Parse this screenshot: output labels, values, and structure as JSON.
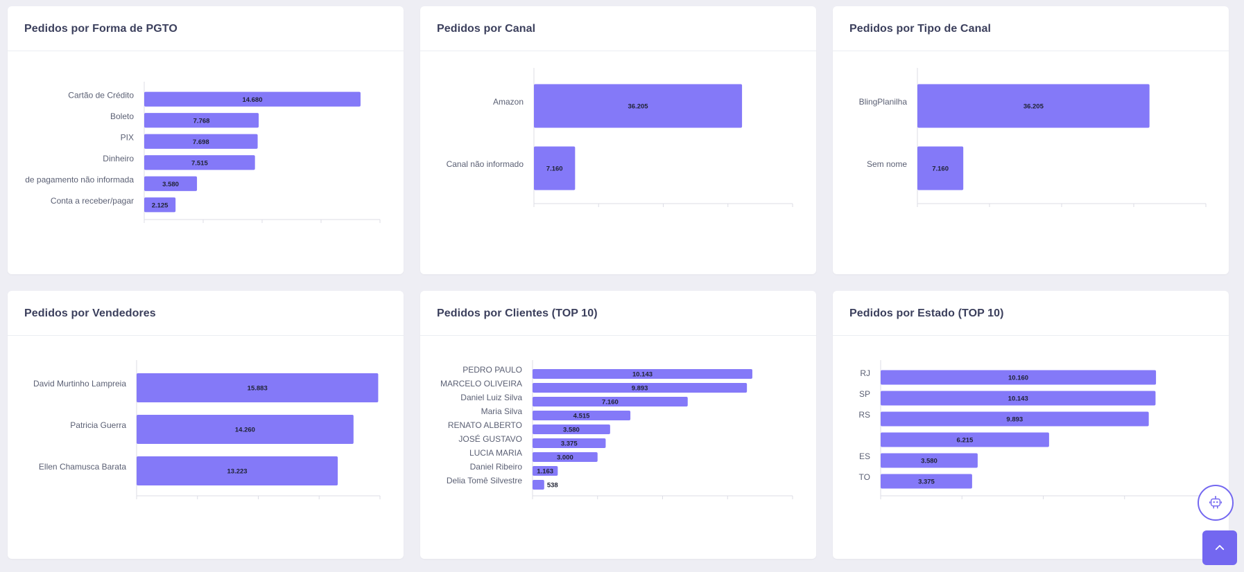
{
  "colors": {
    "bar": "#8479f8",
    "axis": "#dcdde6",
    "accent": "#7367f0"
  },
  "charts": [
    {
      "title": "Pedidos por Forma de PGTO",
      "chart_data": {
        "type": "bar",
        "orientation": "horizontal",
        "categories": [
          "Cartão de Crédito",
          "Boleto",
          "PIX",
          "Dinheiro",
          "de pagamento não informada",
          "Conta a receber/pagar"
        ],
        "values": [
          14680,
          7768,
          7698,
          7515,
          3580,
          2125
        ],
        "value_labels": [
          "14.680",
          "7.768",
          "7.698",
          "7.515",
          "3.580",
          "2.125"
        ],
        "xlim": [
          0,
          16000
        ]
      }
    },
    {
      "title": "Pedidos por Canal",
      "chart_data": {
        "type": "bar",
        "orientation": "horizontal",
        "categories": [
          "Amazon",
          "Canal não informado"
        ],
        "values": [
          36205,
          7160
        ],
        "value_labels": [
          "36.205",
          "7.160"
        ],
        "xlim": [
          0,
          45000
        ]
      }
    },
    {
      "title": "Pedidos por Tipo de Canal",
      "chart_data": {
        "type": "bar",
        "orientation": "horizontal",
        "categories": [
          "BlingPlanilha",
          "Sem nome"
        ],
        "values": [
          36205,
          7160
        ],
        "value_labels": [
          "36.205",
          "7.160"
        ],
        "xlim": [
          0,
          45000
        ]
      }
    },
    {
      "title": "Pedidos por Vendedores",
      "chart_data": {
        "type": "bar",
        "orientation": "horizontal",
        "categories": [
          "David Murtinho Lampreia",
          "Patricia Guerra",
          "Ellen Chamusca Barata"
        ],
        "values": [
          15883,
          14260,
          13223
        ],
        "value_labels": [
          "15.883",
          "14.260",
          "13.223"
        ],
        "xlim": [
          0,
          16000
        ]
      }
    },
    {
      "title": "Pedidos por Clientes (TOP 10)",
      "chart_data": {
        "type": "bar",
        "orientation": "horizontal",
        "categories": [
          "PEDRO PAULO",
          "MARCELO OLIVEIRA",
          "Daniel Luiz Silva",
          "Maria Silva",
          "RENATO ALBERTO",
          "JOSÉ GUSTAVO",
          "LUCIA MARIA",
          "Daniel Ribeiro",
          "Delia Tomê Silvestre"
        ],
        "values": [
          10143,
          9893,
          7160,
          4515,
          3580,
          3375,
          3000,
          1163,
          538
        ],
        "value_labels": [
          "10.143",
          "9.893",
          "7.160",
          "4.515",
          "3.580",
          "3.375",
          "3.000",
          "1.163",
          "538"
        ],
        "xlim": [
          0,
          12000
        ]
      }
    },
    {
      "title": "Pedidos por Estado (TOP 10)",
      "chart_data": {
        "type": "bar",
        "orientation": "horizontal",
        "categories": [
          "RJ",
          "SP",
          "RS",
          "",
          "ES",
          "TO"
        ],
        "values": [
          10160,
          10143,
          9893,
          6215,
          3580,
          3375
        ],
        "value_labels": [
          "10.160",
          "10.143",
          "9.893",
          "6.215",
          "3.580",
          "3.375"
        ],
        "xlim": [
          0,
          12000
        ]
      }
    }
  ]
}
